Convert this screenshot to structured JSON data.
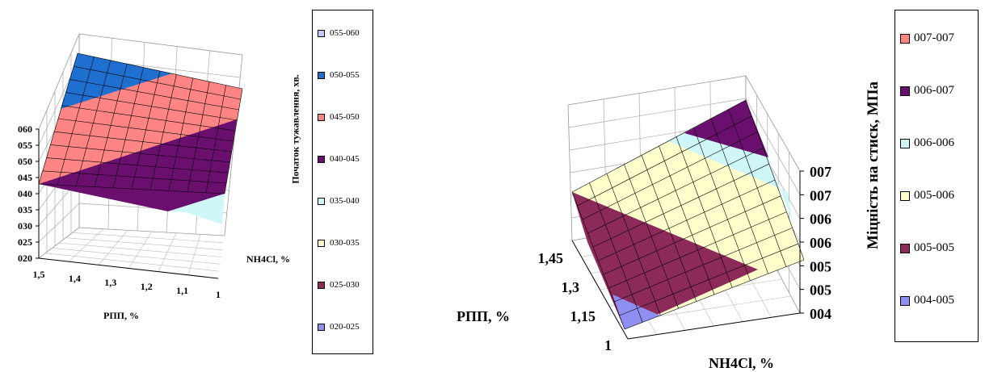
{
  "chart_data": [
    {
      "type": "surface",
      "zlabel": "Початок тужавлення, хв.",
      "xlabel": "РПП, %",
      "ylabel": "NH4Cl, %",
      "x_ticks": [
        "1,5",
        "1,4",
        "1,3",
        "1,2",
        "1,1",
        "1"
      ],
      "z_ticks": [
        "020",
        "025",
        "030",
        "035",
        "040",
        "045",
        "050",
        "055",
        "060"
      ],
      "zlim": [
        20,
        60
      ],
      "legend": [
        {
          "label": "055-060",
          "color": "#c7c7ff"
        },
        {
          "label": "050-055",
          "color": "#1f6fd0"
        },
        {
          "label": "045-050",
          "color": "#ff8585"
        },
        {
          "label": "040-045",
          "color": "#6a0f6e"
        },
        {
          "label": "035-040",
          "color": "#cff7f7"
        },
        {
          "label": "030-035",
          "color": "#ffffcc"
        },
        {
          "label": "025-030",
          "color": "#8c2a5a"
        },
        {
          "label": "020-025",
          "color": "#8f8ff2"
        }
      ],
      "colors": {
        "050-055": "#1f6fd0",
        "045-050": "#ff8585",
        "040-045": "#6a0f6e",
        "035-040": "#cff7f7"
      }
    },
    {
      "type": "surface",
      "zlabel": "Міцність на стиск, МПа",
      "xlabel": "РПП, %",
      "ylabel": "NH4Cl, %",
      "x_ticks": [
        "1,45",
        "1,3",
        "1,15",
        "1"
      ],
      "z_ticks": [
        "004",
        "005",
        "005",
        "006",
        "006",
        "007",
        "007"
      ],
      "legend": [
        {
          "label": "007-007",
          "color": "#ff8585"
        },
        {
          "label": "006-007",
          "color": "#6a0f6e"
        },
        {
          "label": "006-006",
          "color": "#cff7f7"
        },
        {
          "label": "005-006",
          "color": "#ffffcc"
        },
        {
          "label": "005-005",
          "color": "#8c2a5a"
        },
        {
          "label": "004-005",
          "color": "#8f8ff2"
        }
      ],
      "colors": {
        "006-007": "#6a0f6e",
        "006-006": "#cff7f7",
        "005-006": "#ffffcc",
        "005-005": "#8c2a5a",
        "004-005": "#8f8ff2"
      }
    }
  ]
}
